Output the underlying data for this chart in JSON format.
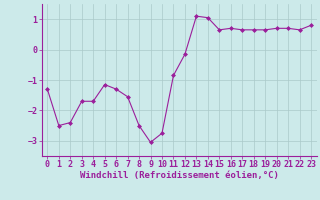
{
  "x": [
    0,
    1,
    2,
    3,
    4,
    5,
    6,
    7,
    8,
    9,
    10,
    11,
    12,
    13,
    14,
    15,
    16,
    17,
    18,
    19,
    20,
    21,
    22,
    23
  ],
  "y": [
    -1.3,
    -2.5,
    -2.4,
    -1.7,
    -1.7,
    -1.15,
    -1.3,
    -1.55,
    -2.5,
    -3.05,
    -2.75,
    -0.85,
    -0.15,
    1.1,
    1.05,
    0.65,
    0.7,
    0.65,
    0.65,
    0.65,
    0.7,
    0.7,
    0.65,
    0.8
  ],
  "line_color": "#9B1F9B",
  "marker": "D",
  "marker_size": 2.0,
  "bg_color": "#cceaea",
  "grid_color": "#aacaca",
  "xlabel": "Windchill (Refroidissement éolien,°C)",
  "xlabel_fontsize": 6.5,
  "tick_fontsize": 6.0,
  "ylim": [
    -3.5,
    1.5
  ],
  "yticks": [
    -3,
    -2,
    -1,
    0,
    1
  ],
  "xlim": [
    -0.5,
    23.5
  ],
  "xticks": [
    0,
    1,
    2,
    3,
    4,
    5,
    6,
    7,
    8,
    9,
    10,
    11,
    12,
    13,
    14,
    15,
    16,
    17,
    18,
    19,
    20,
    21,
    22,
    23
  ]
}
